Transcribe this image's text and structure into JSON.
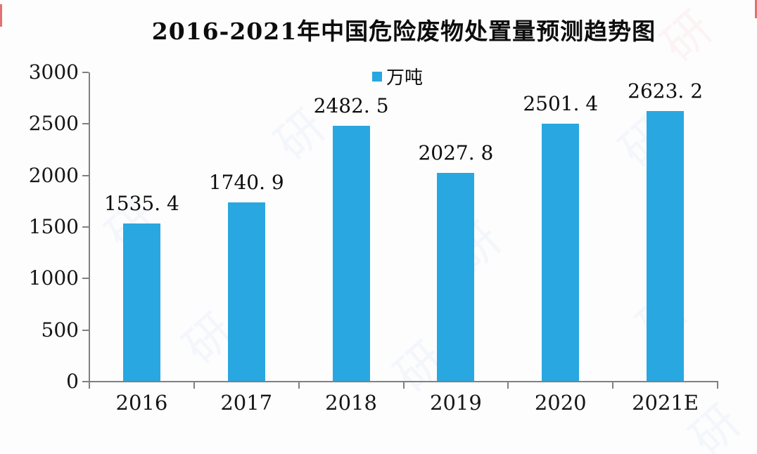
{
  "chart": {
    "title": "2016-2021年中国危险废物处置量预测趋势图",
    "legend_label": "万吨"
  },
  "chart_data": {
    "type": "bar",
    "title": "2016-2021年中国危险废物处置量预测趋势图",
    "categories": [
      "2016",
      "2017",
      "2018",
      "2019",
      "2020",
      "2021E"
    ],
    "values": [
      1535.4,
      1740.9,
      2482.5,
      2027.8,
      2501.4,
      2623.2
    ],
    "series_name": "万吨",
    "unit": "万吨",
    "xlabel": "",
    "ylabel": "",
    "ylim": [
      0,
      3000
    ],
    "yticks": [
      0,
      500,
      1000,
      1500,
      2000,
      2500,
      3000
    ],
    "grid": false,
    "legend_position": "top-center",
    "value_labels_shown": true,
    "bar_color": "#29A7E0"
  },
  "colors": {
    "bar": "#29A7E0",
    "axis": "#808080",
    "text": "#151515",
    "background": "#fdfdfe",
    "edge_mark": "#e57070"
  },
  "watermark": {
    "glyph": "研"
  }
}
